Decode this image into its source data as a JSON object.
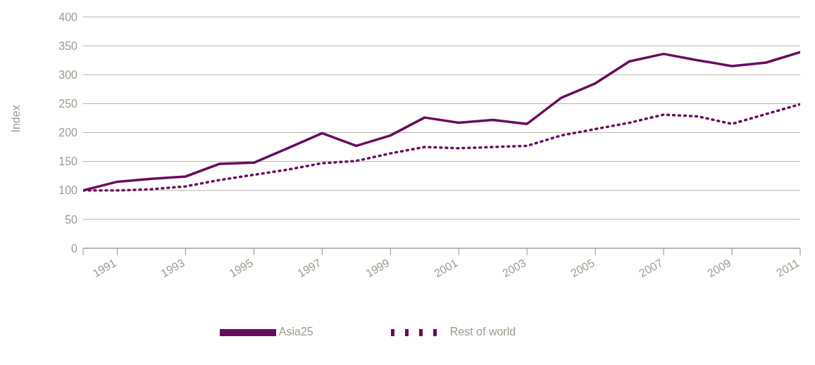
{
  "chart_data": {
    "type": "line",
    "ylabel": "Index",
    "x": [
      1990,
      1991,
      1992,
      1993,
      1994,
      1995,
      1996,
      1997,
      1998,
      1999,
      2000,
      2001,
      2002,
      2003,
      2004,
      2005,
      2006,
      2007,
      2008,
      2009,
      2010,
      2011
    ],
    "series": [
      {
        "name": "Asia25",
        "color": "#680a5e",
        "line_style": "solid",
        "values": [
          100,
          115,
          120,
          124,
          146,
          148,
          173,
          199,
          177,
          195,
          226,
          217,
          222,
          215,
          260,
          285,
          323,
          336,
          325,
          315,
          321,
          339
        ]
      },
      {
        "name": "Rest of world",
        "color": "#680a5e",
        "line_style": "dotted",
        "values": [
          100,
          100,
          102,
          107,
          118,
          127,
          136,
          147,
          151,
          164,
          175,
          173,
          175,
          177,
          195,
          206,
          217,
          231,
          228,
          215,
          232,
          249
        ]
      }
    ],
    "xlim": [
      1990,
      2011
    ],
    "xticks": [
      {
        "value": 1990,
        "label": null
      },
      1991,
      1993,
      1995,
      1997,
      1999,
      2001,
      2003,
      2005,
      2007,
      2009,
      2011
    ],
    "ylim": [
      0,
      400
    ],
    "yticks": [
      0,
      50,
      100,
      150,
      200,
      250,
      300,
      350,
      400
    ],
    "grid": "y",
    "legend": "bottom",
    "marker": "none"
  }
}
